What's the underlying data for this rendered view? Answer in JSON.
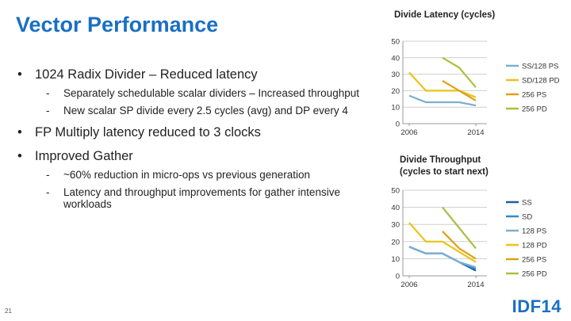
{
  "slide": {
    "title": "Vector Performance",
    "number": "21",
    "logo": "IDF14"
  },
  "bullets": [
    {
      "text": "1024 Radix Divider – Reduced latency",
      "sub": [
        "Separately schedulable scalar dividers – Increased throughput",
        "New scalar SP divide every 2.5 cycles (avg) and DP every 4"
      ]
    },
    {
      "text": "FP Multiply latency reduced to 3 clocks",
      "sub": []
    },
    {
      "text": "Improved Gather",
      "sub": [
        "~60% reduction in micro-ops vs previous generation",
        "Latency and throughput improvements for gather intensive workloads"
      ]
    }
  ],
  "chart_data": [
    {
      "type": "line",
      "title": "Divide Latency (cycles)",
      "x": [
        2006,
        2008,
        2010,
        2012,
        2014
      ],
      "xtick_labels": [
        "2006",
        "2014"
      ],
      "ylim": [
        0,
        50
      ],
      "yticks": [
        0,
        10,
        20,
        30,
        40,
        50
      ],
      "grid": true,
      "legend": "right",
      "series": [
        {
          "name": "SS/128 PS",
          "color": "#7aaed4",
          "values": [
            17,
            13,
            13,
            13,
            11
          ]
        },
        {
          "name": "SD/128 PD",
          "color": "#e8c418",
          "values": [
            31,
            20,
            20,
            20,
            16
          ]
        },
        {
          "name": "256 PS",
          "color": "#e0a018",
          "values": [
            null,
            null,
            26,
            20,
            14
          ]
        },
        {
          "name": "256 PD",
          "color": "#a8c040",
          "values": [
            null,
            null,
            40,
            34,
            22
          ]
        }
      ]
    },
    {
      "type": "line",
      "title": "Divide Throughput",
      "subtitle": "(cycles to start next)",
      "x": [
        2006,
        2008,
        2010,
        2012,
        2014
      ],
      "xtick_labels": [
        "2006",
        "2014"
      ],
      "ylim": [
        0,
        50
      ],
      "yticks": [
        0,
        10,
        20,
        30,
        40,
        50
      ],
      "grid": true,
      "legend": "right",
      "series": [
        {
          "name": "SS",
          "color": "#1f5fa0",
          "values": [
            17,
            13,
            13,
            8,
            3
          ]
        },
        {
          "name": "SD",
          "color": "#2e8ccf",
          "values": [
            17,
            13,
            13,
            8,
            4
          ]
        },
        {
          "name": "128 PS",
          "color": "#7aaed4",
          "values": [
            17,
            13,
            13,
            8,
            5
          ]
        },
        {
          "name": "128 PD",
          "color": "#e8c418",
          "values": [
            31,
            20,
            20,
            14,
            8
          ]
        },
        {
          "name": "256 PS",
          "color": "#e0a018",
          "values": [
            null,
            null,
            26,
            16,
            10
          ]
        },
        {
          "name": "256 PD",
          "color": "#a8c040",
          "values": [
            null,
            null,
            40,
            28,
            16
          ]
        }
      ]
    }
  ]
}
